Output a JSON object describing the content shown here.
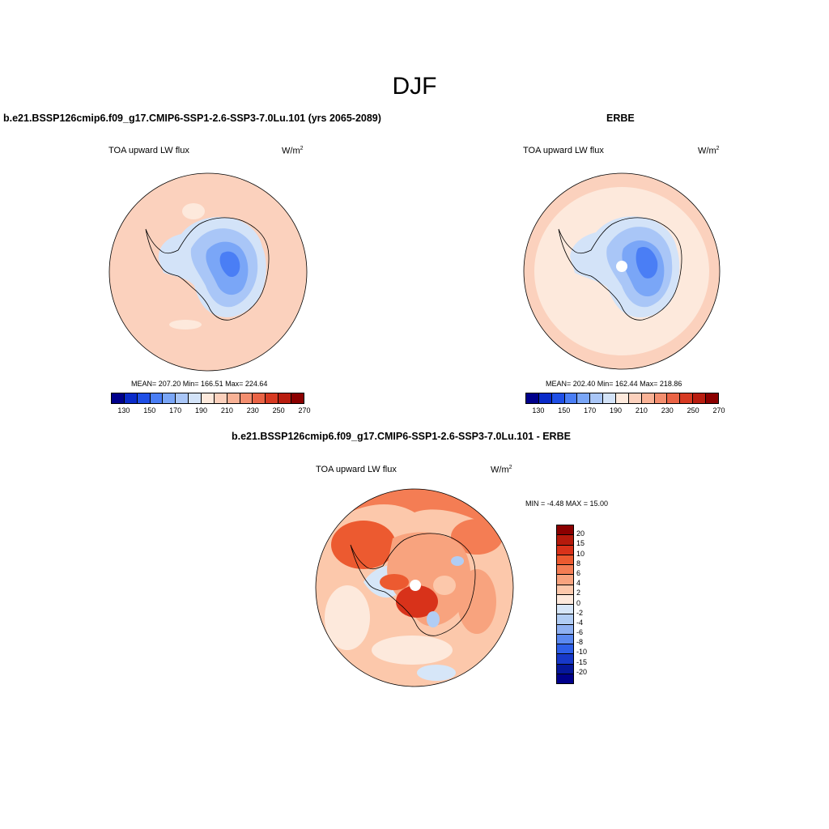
{
  "figure_title": "DJF",
  "panels": {
    "model": {
      "title": "b.e21.BSSP126cmip6.f09_g17.CMIP6-SSP1-2.6-SSP3-7.0Lu.101 (yrs 2065-2089)",
      "label": "TOA upward LW flux",
      "units": "W/m",
      "units_sup": "2",
      "stats": "MEAN= 207.20  Min= 166.51   Max= 224.64"
    },
    "obs": {
      "title": "ERBE",
      "label": "TOA upward LW flux",
      "units": "W/m",
      "units_sup": "2",
      "stats": "MEAN= 202.40  Min= 162.44   Max= 218.86"
    },
    "diff": {
      "title": "b.e21.BSSP126cmip6.f09_g17.CMIP6-SSP1-2.6-SSP3-7.0Lu.101 - ERBE",
      "label": "TOA upward LW flux",
      "units": "W/m",
      "units_sup": "2",
      "stats": "MIN =  -4.48 MAX =  15.00"
    }
  },
  "colorbar_abs": {
    "colors": [
      "#00008b",
      "#0a2bc9",
      "#1f4fe6",
      "#4a7ef5",
      "#7aa6f7",
      "#a9c6f7",
      "#d3e3f8",
      "#fde9dc",
      "#fcd1bd",
      "#f8b296",
      "#f38e6f",
      "#ea6446",
      "#d73a22",
      "#b91d10",
      "#8b0000"
    ],
    "ticks": [
      "130",
      "150",
      "170",
      "190",
      "210",
      "230",
      "250",
      "270"
    ]
  },
  "colorbar_diff": {
    "colors": [
      "#8b0000",
      "#b51a0c",
      "#d8321a",
      "#ec5a30",
      "#f47d54",
      "#f8a37e",
      "#fcc8ab",
      "#fde9dc",
      "#d6e6f8",
      "#b1cdf4",
      "#8fb1f2",
      "#5b89f0",
      "#2e5fe8",
      "#1738c9",
      "#06179a",
      "#00008b"
    ],
    "ticks": [
      "20",
      "15",
      "10",
      "8",
      "6",
      "4",
      "2",
      "0",
      "-2",
      "-4",
      "-6",
      "-8",
      "-10",
      "-15",
      "-20"
    ]
  }
}
